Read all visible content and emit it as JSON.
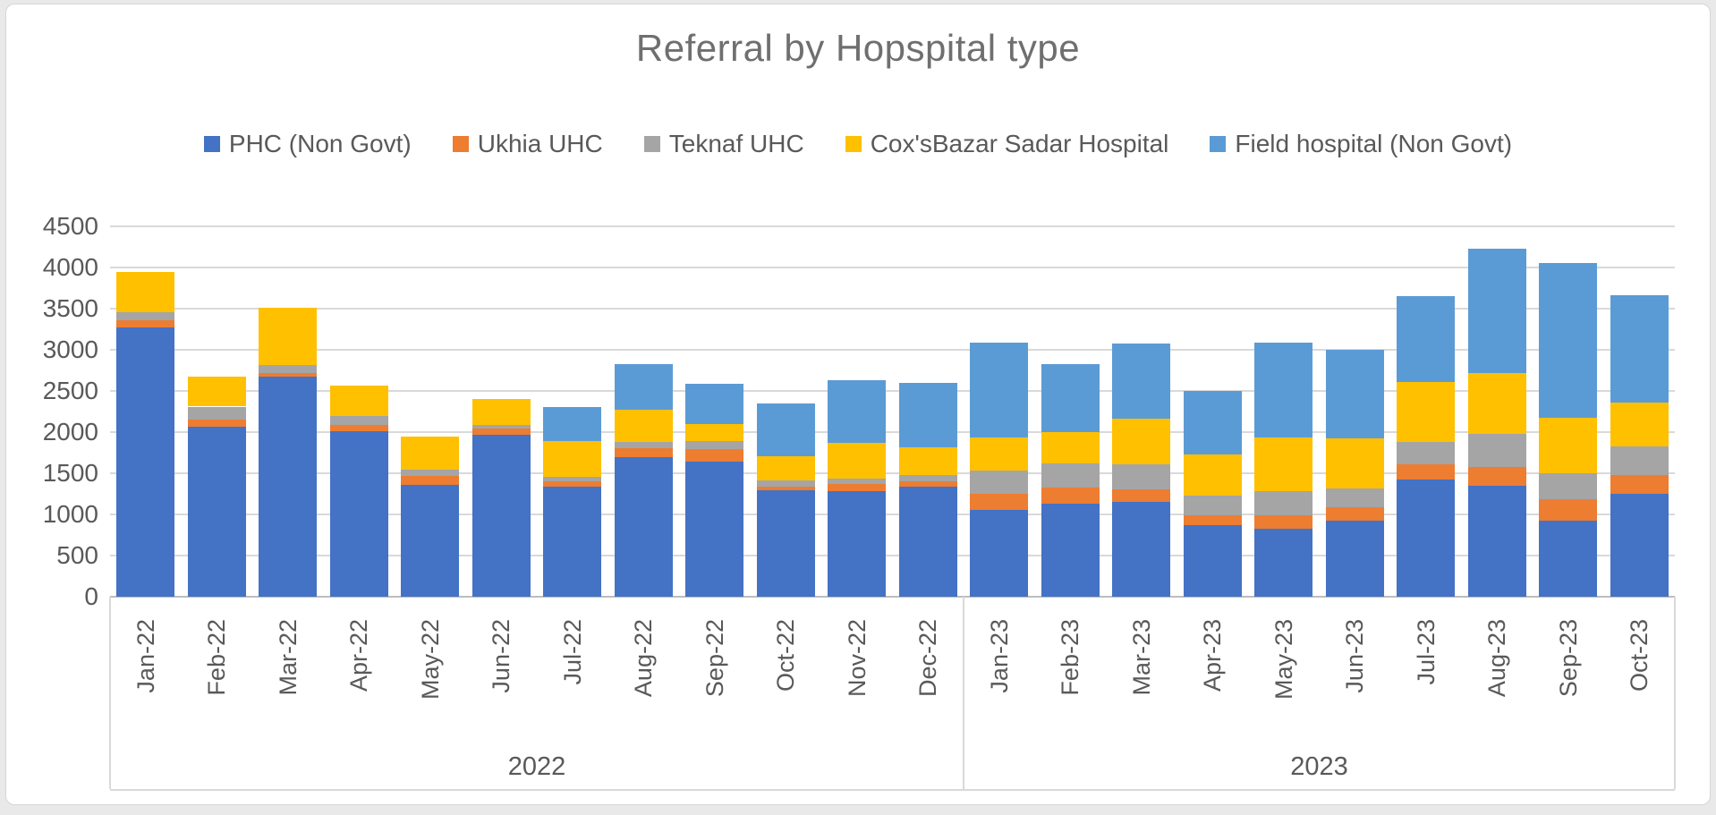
{
  "title": "Referral by Hopspital type",
  "colors": {
    "background": "#ffffff",
    "page_background": "#e9e9e9",
    "border": "#d6d6d6",
    "gridline": "#d9d9d9",
    "axis_line": "#bdbdbd",
    "text": "#595959",
    "title_text": "#6f6f6f"
  },
  "chart_data": {
    "type": "bar",
    "stacked": true,
    "grid": true,
    "legend_position": "top",
    "ylim": [
      0,
      4500
    ],
    "ytick_step": 500,
    "y_ticks": [
      "4500",
      "4000",
      "3500",
      "3000",
      "2500",
      "2000",
      "1500",
      "1000",
      "500",
      "0"
    ],
    "categories": [
      "Jan-22",
      "Feb-22",
      "Mar-22",
      "Apr-22",
      "May-22",
      "Jun-22",
      "Jul-22",
      "Aug-22",
      "Sep-22",
      "Oct-22",
      "Nov-22",
      "Dec-22",
      "Jan-23",
      "Feb-23",
      "Mar-23",
      "Apr-23",
      "May-23",
      "Jun-23",
      "Jul-23",
      "Aug-23",
      "Sep-23",
      "Oct-23"
    ],
    "year_groups": [
      {
        "label": "2022",
        "months": 12
      },
      {
        "label": "2023",
        "months": 10
      }
    ],
    "series": [
      {
        "name": "PHC (Non Govt)",
        "color": "#4472c4",
        "values": [
          3270,
          2070,
          2670,
          2015,
          1355,
          1970,
          1340,
          1700,
          1640,
          1290,
          1280,
          1340,
          1050,
          1130,
          1150,
          870,
          830,
          920,
          1420,
          1350,
          920,
          1250
        ]
      },
      {
        "name": "Ukhia UHC",
        "color": "#ed7d31",
        "values": [
          90,
          85,
          50,
          75,
          115,
          75,
          60,
          105,
          150,
          45,
          85,
          60,
          200,
          200,
          155,
          120,
          155,
          165,
          190,
          230,
          260,
          230
        ]
      },
      {
        "name": "Teknaf UHC",
        "color": "#a5a5a5",
        "values": [
          100,
          155,
          95,
          105,
          70,
          40,
          55,
          80,
          105,
          80,
          75,
          80,
          285,
          295,
          300,
          240,
          300,
          235,
          270,
          400,
          320,
          345
        ]
      },
      {
        "name": "Cox'sBazar Sadar Hospital",
        "color": "#ffc000",
        "values": [
          485,
          360,
          695,
          375,
          405,
          320,
          440,
          390,
          205,
          290,
          430,
          335,
          395,
          375,
          555,
          500,
          655,
          600,
          730,
          740,
          670,
          535
        ]
      },
      {
        "name": "Field hospital (Non Govt)",
        "color": "#5b9bd5",
        "values": [
          0,
          0,
          0,
          0,
          0,
          0,
          415,
          550,
          490,
          645,
          760,
          785,
          1160,
          830,
          920,
          770,
          1150,
          1080,
          1040,
          1510,
          1880,
          1300
        ]
      }
    ]
  }
}
